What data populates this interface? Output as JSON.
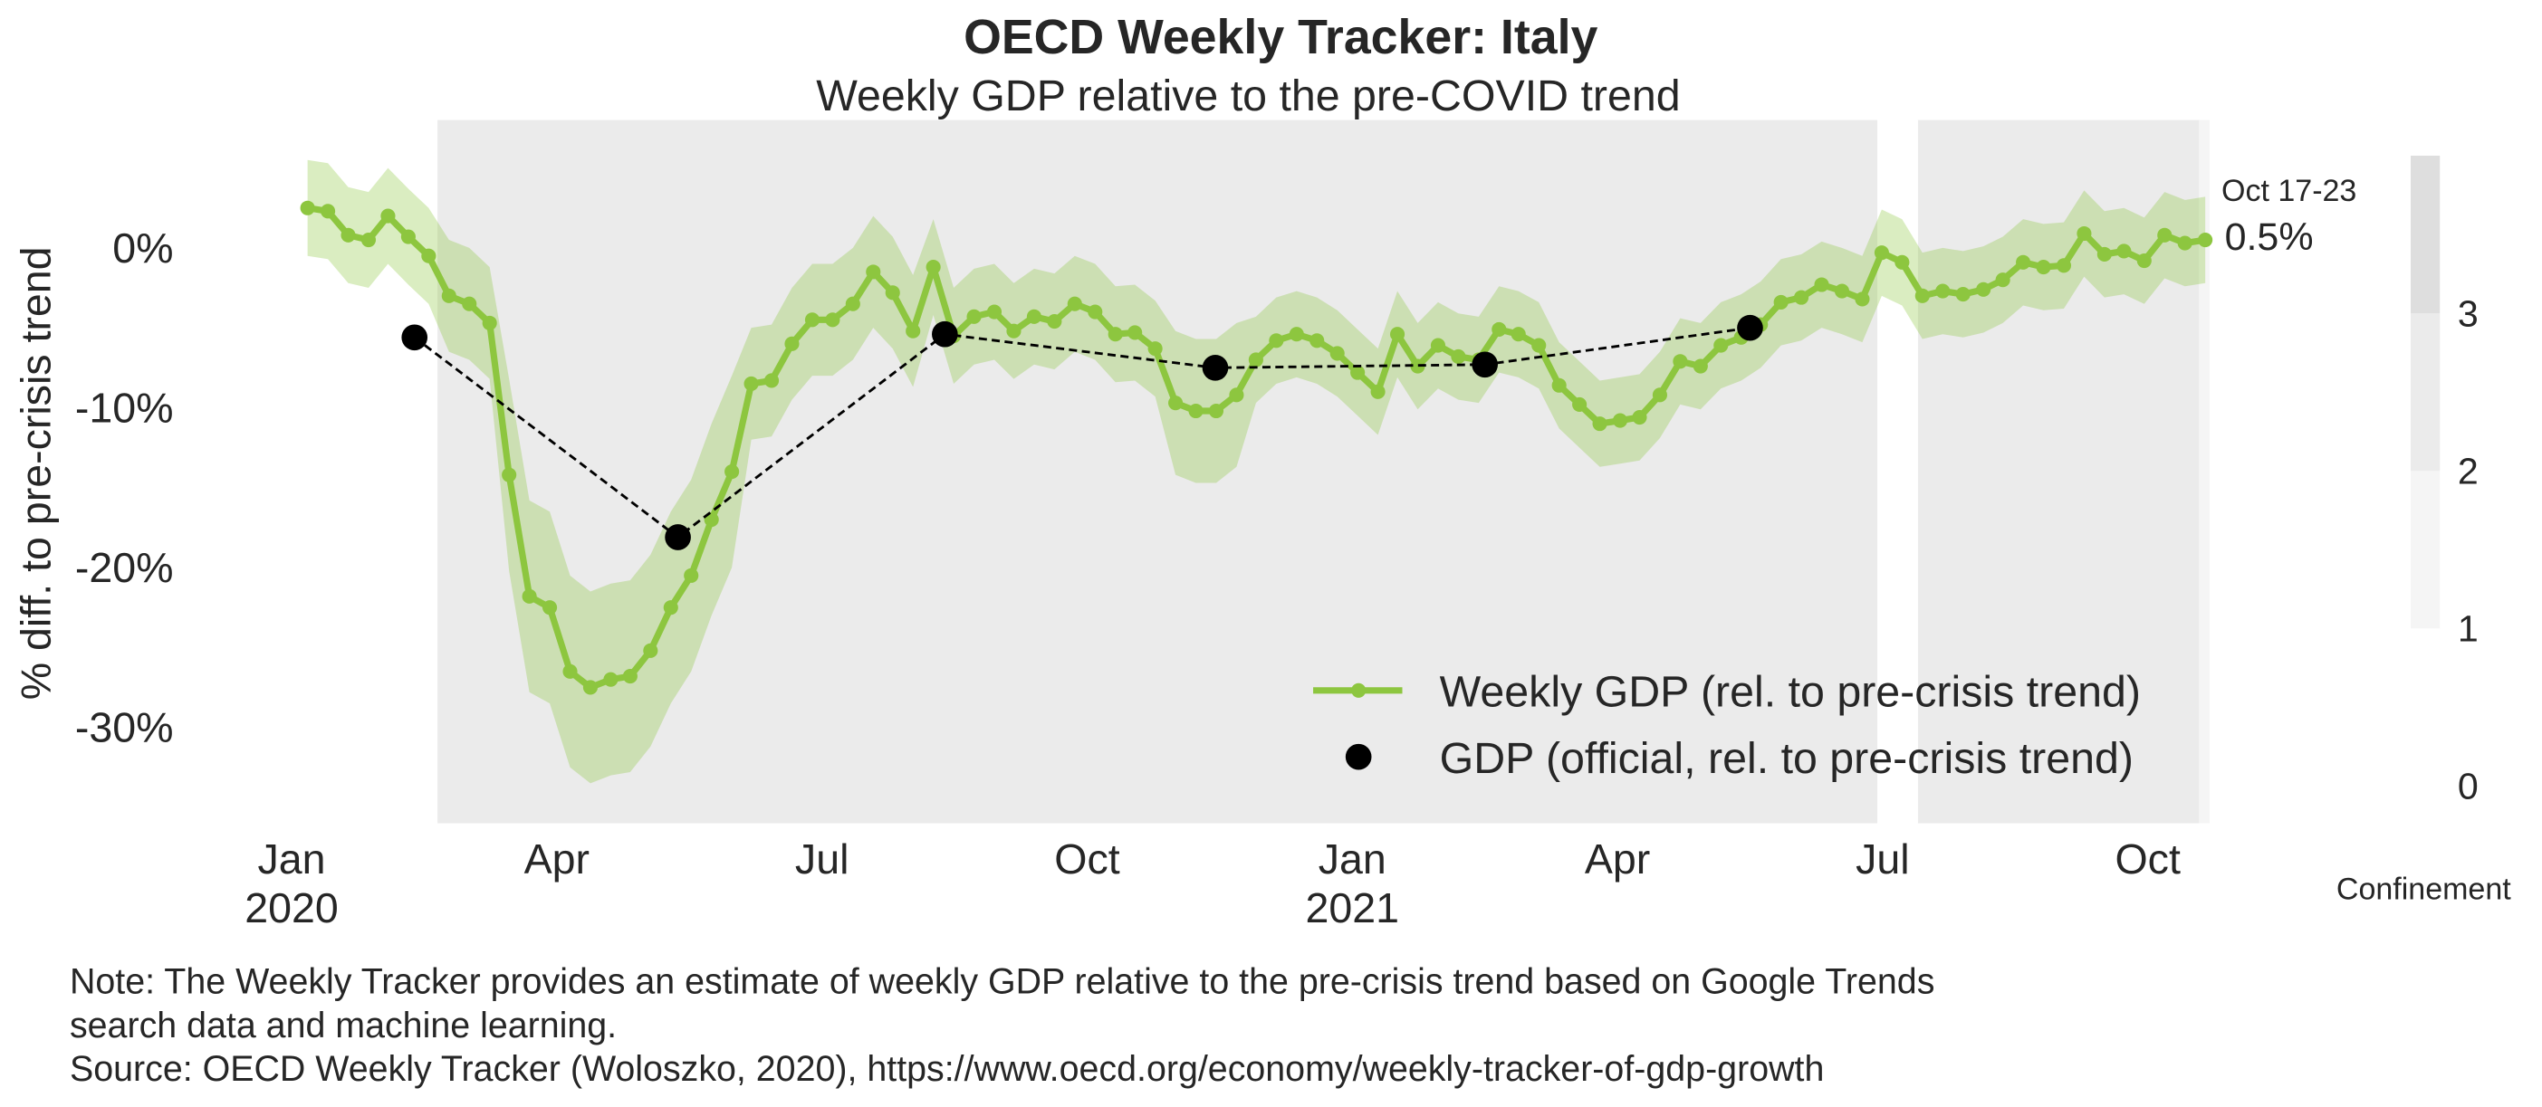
{
  "chart_data": {
    "type": "line",
    "title": "OECD Weekly Tracker: Italy",
    "subtitle": "Weekly GDP relative to the pre-COVID trend",
    "y_label": "% diff. to pre-crisis trend",
    "xlim": [
      -0.2,
      21.7
    ],
    "ylim": [
      -36,
      8
    ],
    "grid": false,
    "legend": "lower right",
    "xticks": [
      {
        "value": 0,
        "label": "Jan\n2020"
      },
      {
        "value": 3,
        "label": "Apr"
      },
      {
        "value": 6,
        "label": "Jul"
      },
      {
        "value": 9,
        "label": "Oct"
      },
      {
        "value": 12,
        "label": "Jan\n2021"
      },
      {
        "value": 15,
        "label": "Apr"
      },
      {
        "value": 18,
        "label": "Jul"
      },
      {
        "value": 21,
        "label": "Oct"
      }
    ],
    "yticks": [
      {
        "value": 0,
        "label": "0%"
      },
      {
        "value": -10,
        "label": "-10%"
      },
      {
        "value": -20,
        "label": "-20%"
      },
      {
        "value": -30,
        "label": "-30%"
      }
    ],
    "series": [
      {
        "name": "Weekly GDP (rel. to pre-crisis trend)",
        "color": "#8dc63f",
        "x": [
          0.18,
          0.41,
          0.64,
          0.87,
          1.09,
          1.32,
          1.55,
          1.78,
          2.01,
          2.24,
          2.46,
          2.69,
          2.92,
          3.15,
          3.38,
          3.61,
          3.83,
          4.06,
          4.29,
          4.52,
          4.75,
          4.98,
          5.2,
          5.43,
          5.66,
          5.89,
          6.12,
          6.35,
          6.58,
          6.8,
          7.03,
          7.26,
          7.49,
          7.72,
          7.95,
          8.17,
          8.4,
          8.63,
          8.86,
          9.09,
          9.32,
          9.54,
          9.77,
          10.0,
          10.23,
          10.46,
          10.69,
          10.91,
          11.14,
          11.37,
          11.6,
          11.83,
          12.06,
          12.29,
          12.51,
          12.74,
          12.97,
          13.2,
          13.43,
          13.66,
          13.88,
          14.11,
          14.34,
          14.57,
          14.8,
          15.03,
          15.25,
          15.48,
          15.71,
          15.94,
          16.17,
          16.4,
          16.62,
          16.85,
          17.08,
          17.31,
          17.54,
          17.77,
          17.99,
          18.22,
          18.45,
          18.68,
          18.91,
          19.14,
          19.36,
          19.59,
          19.82,
          20.05,
          20.28,
          20.51,
          20.73,
          20.96,
          21.19,
          21.42,
          21.65
        ],
        "values": [
          2.5,
          2.3,
          0.8,
          0.5,
          2.0,
          0.7,
          -0.5,
          -3.0,
          -3.5,
          -4.7,
          -14.2,
          -21.8,
          -22.5,
          -26.5,
          -27.5,
          -27.0,
          -26.8,
          -25.2,
          -22.5,
          -20.5,
          -17.0,
          -14.0,
          -8.5,
          -8.3,
          -6.0,
          -4.5,
          -4.5,
          -3.5,
          -1.5,
          -2.8,
          -5.2,
          -1.2,
          -5.5,
          -4.3,
          -4.0,
          -5.2,
          -4.3,
          -4.6,
          -3.5,
          -4.0,
          -5.4,
          -5.3,
          -6.3,
          -9.7,
          -10.2,
          -10.2,
          -9.2,
          -7.0,
          -5.8,
          -5.4,
          -5.8,
          -6.6,
          -7.8,
          -9.0,
          -5.4,
          -7.4,
          -6.1,
          -6.8,
          -7.0,
          -5.1,
          -5.4,
          -6.1,
          -8.6,
          -9.8,
          -11.0,
          -10.8,
          -10.6,
          -9.2,
          -7.1,
          -7.4,
          -6.1,
          -5.6,
          -4.8,
          -3.4,
          -3.1,
          -2.3,
          -2.7,
          -3.2,
          -0.3,
          -0.9,
          -3.0,
          -2.7,
          -2.9,
          -2.6,
          -2.0,
          -0.9,
          -1.2,
          -1.1,
          0.9,
          -0.4,
          -0.2,
          -0.8,
          0.8,
          0.3,
          0.5
        ],
        "lower": [
          -0.5,
          -0.7,
          -2.2,
          -2.5,
          -1.0,
          -2.3,
          -3.5,
          -6.5,
          -7.0,
          -8.2,
          -20.2,
          -27.8,
          -28.5,
          -32.5,
          -33.5,
          -33.0,
          -32.8,
          -31.2,
          -28.5,
          -26.5,
          -23.0,
          -20.0,
          -12.0,
          -11.8,
          -9.5,
          -8.0,
          -8.0,
          -7.0,
          -5.0,
          -6.3,
          -8.7,
          -4.2,
          -8.5,
          -7.3,
          -7.0,
          -8.2,
          -7.3,
          -7.6,
          -6.5,
          -7.0,
          -8.4,
          -8.3,
          -9.3,
          -14.2,
          -14.7,
          -14.7,
          -13.7,
          -9.7,
          -8.5,
          -8.1,
          -8.5,
          -9.3,
          -10.5,
          -11.7,
          -8.1,
          -10.1,
          -8.8,
          -9.5,
          -9.7,
          -7.8,
          -8.1,
          -8.8,
          -11.3,
          -12.5,
          -13.7,
          -13.5,
          -13.3,
          -11.9,
          -9.8,
          -10.1,
          -8.8,
          -8.3,
          -7.5,
          -6.1,
          -5.8,
          -5.0,
          -5.4,
          -5.9,
          -3.0,
          -3.6,
          -5.7,
          -5.4,
          -5.6,
          -5.3,
          -4.7,
          -3.6,
          -3.9,
          -3.8,
          -1.8,
          -3.1,
          -2.9,
          -3.5,
          -1.9,
          -2.4,
          -2.2
        ],
        "upper": [
          5.5,
          5.3,
          3.8,
          3.5,
          5.0,
          3.7,
          2.5,
          0.5,
          0.0,
          -1.2,
          -8.2,
          -15.8,
          -16.5,
          -20.5,
          -21.5,
          -21.0,
          -20.8,
          -19.2,
          -16.5,
          -14.5,
          -11.0,
          -8.0,
          -5.0,
          -4.8,
          -2.5,
          -1.0,
          -1.0,
          0.0,
          2.0,
          0.7,
          -1.7,
          1.8,
          -2.5,
          -1.3,
          -1.0,
          -2.2,
          -1.3,
          -1.6,
          -0.5,
          -1.0,
          -2.4,
          -2.3,
          -3.3,
          -5.2,
          -5.7,
          -5.7,
          -4.7,
          -4.3,
          -3.1,
          -2.7,
          -3.1,
          -3.9,
          -5.1,
          -6.3,
          -2.7,
          -4.7,
          -3.4,
          -4.1,
          -4.3,
          -2.4,
          -2.7,
          -3.4,
          -5.9,
          -7.1,
          -8.3,
          -8.1,
          -7.9,
          -6.5,
          -4.4,
          -4.7,
          -3.4,
          -2.9,
          -2.1,
          -0.7,
          -0.4,
          0.4,
          0.0,
          -0.5,
          2.4,
          1.8,
          -0.3,
          0.0,
          -0.2,
          0.1,
          0.7,
          1.8,
          1.5,
          1.6,
          3.6,
          2.3,
          2.5,
          1.9,
          3.5,
          3.0,
          3.2
        ]
      },
      {
        "name": "GDP (official, rel. to pre-crisis trend)",
        "color": "#000000",
        "x": [
          1.39,
          4.37,
          7.39,
          10.45,
          13.5,
          16.5
        ],
        "values": [
          -5.6,
          -18.1,
          -5.4,
          -7.5,
          -7.3,
          -5.0
        ]
      }
    ],
    "annotation": {
      "label": "Oct 17-23",
      "value": 0.5,
      "value_label": "0.5%"
    },
    "confinement": {
      "label": "Confinement",
      "periods": [
        {
          "start": 1.65,
          "end": 17.94,
          "level": 2
        },
        {
          "start": 18.4,
          "end": 21.58,
          "level": 2
        },
        {
          "start": 21.58,
          "end": 21.7,
          "level": 1
        }
      ],
      "clim": [
        0,
        4
      ],
      "ticks": [
        0,
        1,
        2,
        3
      ],
      "colors": [
        "#ffffff",
        "#f5f5f5",
        "#ebebeb",
        "#dedede"
      ]
    },
    "note": [
      "Note: The Weekly Tracker provides an estimate of weekly GDP relative to the pre-crisis trend based on Google Trends",
      "search data and machine learning.",
      "Source: OECD Weekly Tracker (Woloszko, 2020), https://www.oecd.org/economy/weekly-tracker-of-gdp-growth"
    ]
  }
}
